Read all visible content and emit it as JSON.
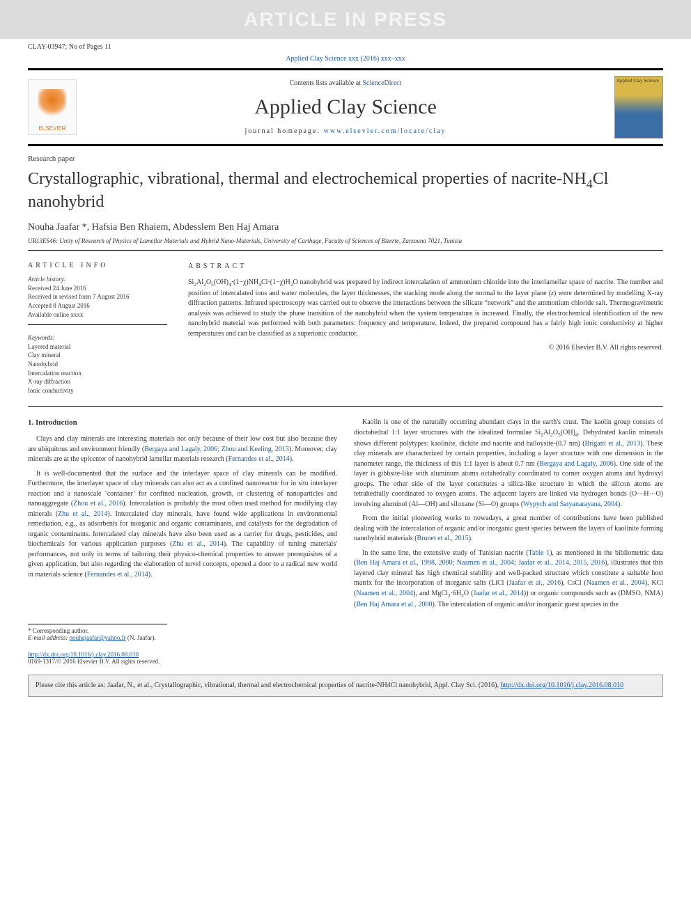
{
  "watermark": "ARTICLE IN PRESS",
  "page_ref_left": "CLAY-03947; No of Pages 11",
  "journal_ref": "Applied Clay Science xxx (2016) xxx–xxx",
  "masthead": {
    "contents_text": "Contents lists available at ",
    "contents_link_label": "ScienceDirect",
    "journal_name": "Applied Clay Science",
    "homepage_prefix": "journal homepage: ",
    "homepage_url_label": "www.elsevier.com/locate/clay",
    "publisher_logo_label": "ELSEVIER",
    "cover_label": "Applied Clay Science"
  },
  "article": {
    "type": "Research paper",
    "title_html": "Crystallographic, vibrational, thermal and electrochemical properties of nacrite-NH<sub>4</sub>Cl nanohybrid",
    "authors": "Nouha Jaafar *, Hafsia Ben Rhaiem, Abdesslem Ben Haj Amara",
    "affiliation": "UR13ES46: Unity of Research of Physics of Lamellar Materials and Hybrid Nano-Materials, University of Carthage, Faculty of Sciences of Bizerte, Zarzouna 7021, Tunisia"
  },
  "info": {
    "heading": "ARTICLE INFO",
    "history_heading": "Article history:",
    "received": "Received 24 June 2016",
    "revised": "Received in revised form 7 August 2016",
    "accepted": "Accepted 8 August 2016",
    "online": "Available online xxxx",
    "keywords_heading": "Keywords:",
    "keywords": [
      "Layered material",
      "Clay mineral",
      "Nanohybrid",
      "Intercalation reaction",
      "X-ray diffraction",
      "Ionic conductivity"
    ]
  },
  "abstract": {
    "heading": "ABSTRACT",
    "text_html": "Si<sub>2</sub>Al<sub>2</sub>O<sub>5</sub>(OH)<sub>4</sub>·(1−χ)NH<sub>4</sub>Cl·(1−χ)H<sub>2</sub>O nanohybrid was prepared by indirect intercalation of ammonium chloride into the interlamellar space of nacrite. The number and position of intercalated ions and water molecules, the layer thicknesses, the stacking mode along the normal to the layer plane (<i>z</i>) were determined by modelling X-ray diffraction patterns. Infrared spectroscopy was carried out to observe the interactions between the silicate “network” and the ammonium chloride salt. Thermogravimetric analysis was achieved to study the phase transition of the nanohybrid when the system temperature is increased. Finally, the electrochemical identification of the new nanohybrid material was performed with both parameters: frequency and temperature. Indeed, the prepared compound has a fairly high ionic conductivity at higher temperatures and can be classified as a superionic conductor.",
    "copyright": "© 2016 Elsevier B.V. All rights reserved."
  },
  "body": {
    "section_heading": "1. Introduction",
    "left_paras": [
      "Clays and clay minerals are interesting materials not only because of their low cost but also because they are ubiquitous and environment friendly (<span class=\"link\">Bergaya and Lagaly, 2006; Zhou and Keeling, 2013</span>). Moreover, clay minerals are at the epicenter of nanohybrid lamellar materials research (<span class=\"link\">Fernandes et al., 2014</span>).",
      "It is well-documented that the surface and the interlayer space of clay minerals can be modified. Furthermore, the interlayer space of clay minerals can also act as a confined nanoreactor for in situ interlayer reaction and a nanoscale ‘container’ for confined nucleation, growth, or clustering of nanoparticles and nanoaggregate (<span class=\"link\">Zhou et al., 2016</span>). Intercalation is probably the most often used method for modifying clay minerals (<span class=\"link\">Zhu et al., 2014</span>). Intercalated clay minerals, have found wide applications in environmental remediation, e.g., as adsorbents for inorganic and organic contaminants, and catalysts for the degradation of organic contaminants. Intercalated clay minerals have also been used as a carrier for drugs, pesticides, and biochemicals for various application purposes (<span class=\"link\">Zhu et al., 2014</span>). The capability of tuning materials' performances, not only in terms of tailoring their physico-chemical properties to answer prerequisites of a given application, but also regarding the elaboration of novel concepts, opened a door to a radical new world in materials science (<span class=\"link\">Fernandes et al., 2014</span>)."
    ],
    "right_paras": [
      "Kaolin is one of the naturally occurring abundant clays in the earth's crust. The kaolin group consists of dioctahedral 1:1 layer structures with the idealized formulae Si<sub>2</sub>Al<sub>2</sub>O<sub>5</sub>(OH)<sub>4</sub>. Dehydrated kaolin minerals shows different polytypes: kaolinite, dickite and nacrite and halloysite-(0.7 nm) (<span class=\"link\">Brigatti et al., 2013</span>). These clay minerals are characterized by certain properties, including a layer structure with one dimension in the nanometer range, the thickness of this 1:1 layer is about 0.7 nm (<span class=\"link\">Bergaya and Lagaly, 2006</span>). One side of the layer is gibbsite-like with aluminum atoms octahedrally coordinated to corner oxygen atoms and hydroxyl groups. The other side of the layer constitutes a silica-like structure in which the silicon atoms are tetrahedrally coordinated to oxygen atoms. The adjacent layers are linked via hydrogen bonds (O—H⋯O) involving aluminol (Al—OH) and siloxane (Si—O) groups (<span class=\"link\">Wypych and Satyanarayana, 2004</span>).",
      "From the initial pioneering works to nowadays, a great number of contributions have been published dealing with the intercalation of organic and/or inorganic guest species between the layers of kaolinite forming nanohybrid materials (<span class=\"link\">Brunet et al., 2015</span>).",
      "In the same line, the extensive study of Tunisian nacrite (<span class=\"link\">Table 1</span>), as mentioned in the bibliometric data (<span class=\"link\">Ben Haj Amara et al., 1998, 2000; Naamen et al., 2004; Jaafar et al., 2014, 2015, 2016</span>), illustrates that this layered clay mineral has high chemical stability and well-packed structure which constitute a suitable host matrix for the incorporation of inorganic salts (LiCl (<span class=\"link\">Jaafar et al., 2016</span>), CsCl (<span class=\"link\">Naamen et al., 2004</span>), KCl (<span class=\"link\">Naamen et al., 2004</span>), and MgCl<sub>2</sub>·6H<sub>2</sub>O (<span class=\"link\">Jaafar et al., 2014</span>)) or organic compounds such as (DMSO, NMA) (<span class=\"link\">Ben Haj Amara et al., 2000</span>). The intercalation of organic and/or inorganic guest species in the"
    ]
  },
  "footer": {
    "corr_author_label": "* Corresponding author.",
    "email_label": "E-mail address:",
    "email": "nouhajaafar@yahoo.fr",
    "email_attribution": "(N. Jaafar).",
    "doi_url": "http://dx.doi.org/10.1016/j.clay.2016.08.010",
    "issn_line": "0169-1317/© 2016 Elsevier B.V. All rights reserved."
  },
  "cite_box": {
    "text": "Please cite this article as: Jaafar, N., et al., Crystallographic, vibrational, thermal and electrochemical properties of nacrite-NH4Cl nanohybrid, Appl. Clay Sci. (2016), ",
    "link_label": "http://dx.doi.org/10.1016/j.clay.2016.08.010"
  },
  "colors": {
    "link": "#1a5ca8",
    "watermark_bg": "#dcdcdc",
    "watermark_fg": "#f5f5f5",
    "elsevier_orange": "#e67817",
    "cite_bg": "#eeeeee",
    "rule": "#000000"
  }
}
